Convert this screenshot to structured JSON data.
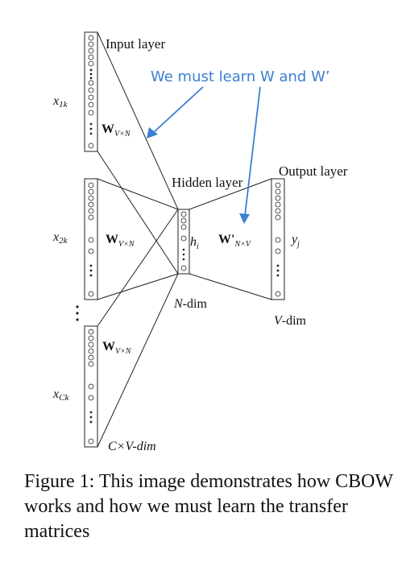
{
  "labels": {
    "input_layer": "Input layer",
    "hidden_layer": "Hidden layer",
    "output_layer": "Output layer",
    "x_sub_1": "1k",
    "x_sub_2": "2k",
    "x_sub_c": "Ck",
    "w_sub": "V×N",
    "wprime_sub": "N×V",
    "h_sub": "i",
    "y_sub": "j",
    "n_dim": "-dim",
    "v_dim": "-dim",
    "cv_dim": "C×V-dim"
  },
  "annotation": {
    "text": "We must learn W and W’",
    "color": "#3d7fd0"
  },
  "caption": {
    "text": "Figure 1: This image demonstrates how CBOW works and how we must learn the transfer matrices"
  }
}
